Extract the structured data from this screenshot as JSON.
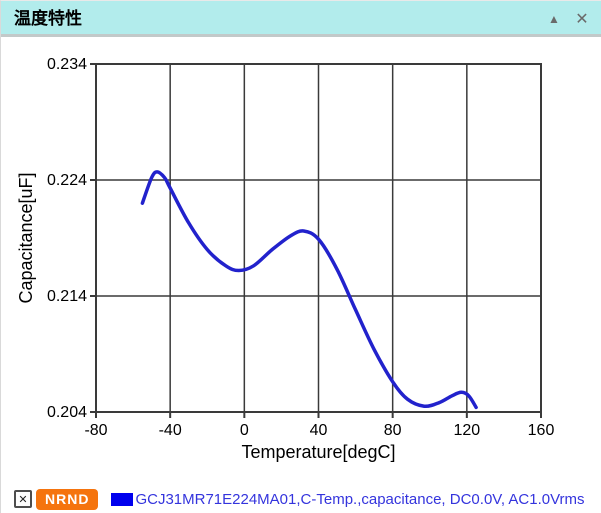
{
  "header": {
    "title": "温度特性",
    "collapse_icon": "▲",
    "close_icon": "✕"
  },
  "chart_data": {
    "type": "line",
    "title": "",
    "xlabel": "Temperature[degC]",
    "ylabel": "Capacitance[uF]",
    "xlim": [
      -80,
      160
    ],
    "ylim": [
      0.204,
      0.234
    ],
    "xticks": [
      -80,
      -40,
      0,
      40,
      80,
      120,
      160
    ],
    "yticks": [
      0.204,
      0.214,
      0.224,
      0.234
    ],
    "ytick_decimals": 3,
    "grid": true,
    "legend_position": "bottom",
    "series": [
      {
        "name": "GCJ31MR71E224MA01,C-Temp.,capacitance, DC0.0V, AC1.0Vrms",
        "color": "#2222cc",
        "points": [
          [
            -55,
            0.222
          ],
          [
            -50,
            0.2242
          ],
          [
            -47,
            0.2247
          ],
          [
            -43,
            0.2242
          ],
          [
            -40,
            0.2233
          ],
          [
            -30,
            0.2203
          ],
          [
            -20,
            0.218
          ],
          [
            -10,
            0.2166
          ],
          [
            -3,
            0.2162
          ],
          [
            5,
            0.2166
          ],
          [
            15,
            0.218
          ],
          [
            25,
            0.2192
          ],
          [
            32,
            0.2196
          ],
          [
            40,
            0.2189
          ],
          [
            50,
            0.2163
          ],
          [
            60,
            0.2128
          ],
          [
            70,
            0.2094
          ],
          [
            80,
            0.2066
          ],
          [
            88,
            0.2051
          ],
          [
            97,
            0.2045
          ],
          [
            105,
            0.2048
          ],
          [
            112,
            0.2054
          ],
          [
            117,
            0.2057
          ],
          [
            121,
            0.2054
          ],
          [
            125,
            0.2044
          ]
        ]
      }
    ]
  },
  "legend": {
    "checkbox_glyph": "✕",
    "badge_label": "NRND",
    "series_label": "GCJ31MR71E224MA01,C-Temp.,capacitance, DC0.0V, AC1.0Vrms"
  },
  "colors": {
    "header_teal": "#b2ecec",
    "curve_blue": "#2222cc",
    "marker_blue": "#0000ee",
    "series_text_blue": "#3434dd",
    "badge_orange": "#f5740e",
    "grid_dark": "#3a3a3a"
  }
}
